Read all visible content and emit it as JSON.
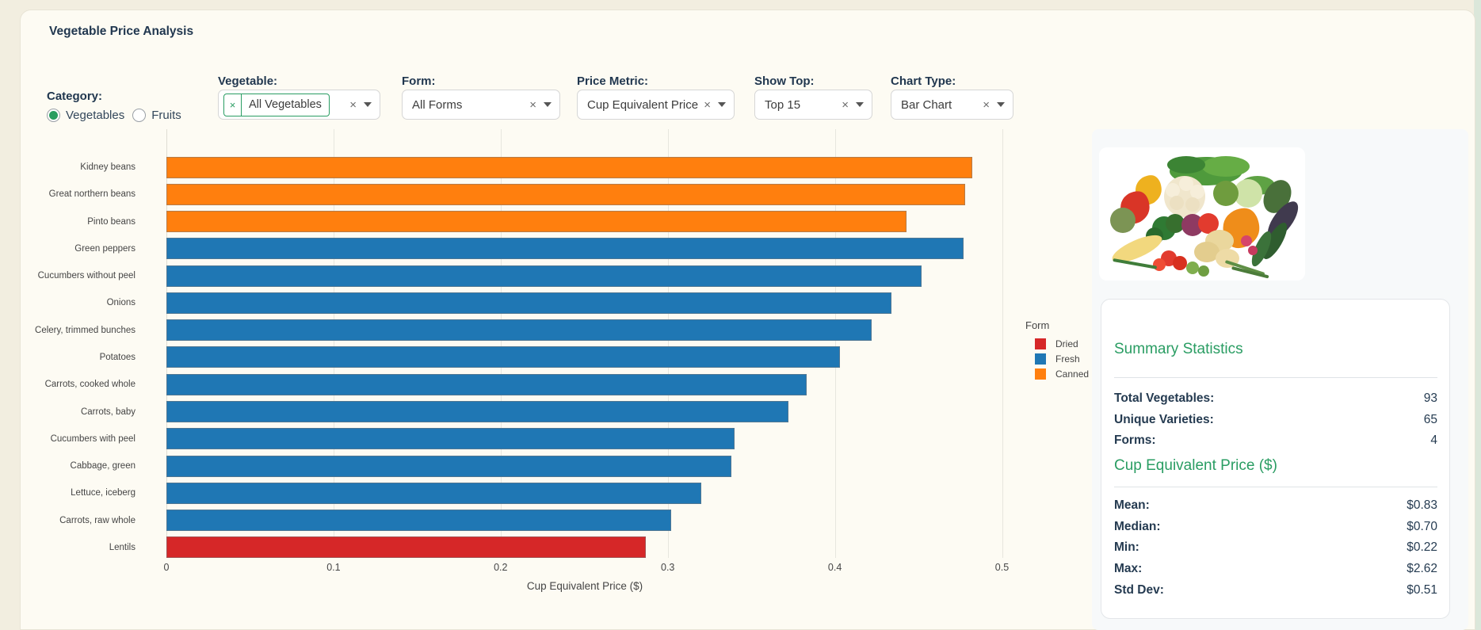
{
  "title": "Vegetable Price Analysis",
  "filters": {
    "category": {
      "label": "Category:",
      "options": [
        {
          "label": "Vegetables",
          "selected": true
        },
        {
          "label": "Fruits",
          "selected": false
        }
      ]
    },
    "vegetable": {
      "label": "Vegetable:",
      "value": "All Vegetables",
      "chip": true
    },
    "form": {
      "label": "Form:",
      "value": "All Forms"
    },
    "price_metric": {
      "label": "Price Metric:",
      "value": "Cup Equivalent Price"
    },
    "show_top": {
      "label": "Show Top:",
      "value": "Top 15"
    },
    "chart_type": {
      "label": "Chart Type:",
      "value": "Bar Chart"
    }
  },
  "chart_data": {
    "type": "bar",
    "orientation": "horizontal",
    "xlabel": "Cup Equivalent Price ($)",
    "xlim": [
      0,
      0.53
    ],
    "xticks": [
      0,
      0.1,
      0.2,
      0.3,
      0.4,
      0.5
    ],
    "grid": true,
    "legend": {
      "title": "Form",
      "position": "right",
      "entries": [
        {
          "label": "Dried",
          "color": "#d62728"
        },
        {
          "label": "Fresh",
          "color": "#1f77b4"
        },
        {
          "label": "Canned",
          "color": "#ff7f0e"
        }
      ]
    },
    "categories": [
      "Kidney beans",
      "Great northern beans",
      "Pinto beans",
      "Green peppers",
      "Cucumbers without peel",
      "Onions",
      "Celery, trimmed bunches",
      "Potatoes",
      "Carrots, cooked whole",
      "Carrots, baby",
      "Cucumbers with peel",
      "Cabbage, green",
      "Lettuce, iceberg",
      "Carrots, raw whole",
      "Lentils"
    ],
    "values": [
      0.482,
      0.478,
      0.443,
      0.477,
      0.452,
      0.434,
      0.422,
      0.403,
      0.383,
      0.372,
      0.34,
      0.338,
      0.32,
      0.302,
      0.287
    ],
    "forms": [
      "Canned",
      "Canned",
      "Canned",
      "Fresh",
      "Fresh",
      "Fresh",
      "Fresh",
      "Fresh",
      "Fresh",
      "Fresh",
      "Fresh",
      "Fresh",
      "Fresh",
      "Fresh",
      "Dried"
    ]
  },
  "summary": {
    "heading": "Summary Statistics",
    "rows": [
      {
        "label": "Total Vegetables:",
        "value": "93"
      },
      {
        "label": "Unique Varieties:",
        "value": "65"
      },
      {
        "label": "Forms:",
        "value": "4"
      }
    ],
    "price_heading": "Cup Equivalent Price ($)",
    "price_rows": [
      {
        "label": "Mean:",
        "value": "$0.83"
      },
      {
        "label": "Median:",
        "value": "$0.70"
      },
      {
        "label": "Min:",
        "value": "$0.22"
      },
      {
        "label": "Max:",
        "value": "$2.62"
      },
      {
        "label": "Std Dev:",
        "value": "$0.51"
      }
    ]
  }
}
